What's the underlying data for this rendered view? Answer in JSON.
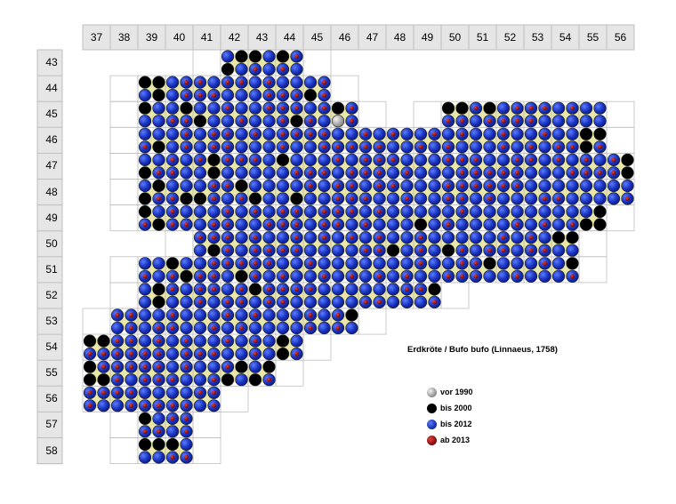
{
  "map": {
    "title": "Erdkröte / Bufo bufo (Linnaeus, 1758)",
    "column_labels": [
      "37",
      "38",
      "39",
      "40",
      "41",
      "42",
      "43",
      "44",
      "45",
      "46",
      "47",
      "48",
      "49",
      "50",
      "51",
      "52",
      "53",
      "54",
      "55",
      "56"
    ],
    "row_labels": [
      "43",
      "44",
      "45",
      "46",
      "47",
      "48",
      "49",
      "50",
      "51",
      "52",
      "53",
      "54",
      "55",
      "56",
      "57",
      "58"
    ],
    "legend": [
      {
        "label": "vor 1990",
        "color": "#9a9a9a"
      },
      {
        "label": "bis 2000",
        "color": "#000000"
      },
      {
        "label": "bis 2012",
        "color": "#1430c8"
      },
      {
        "label": "ab 2013",
        "color": "#a01010"
      }
    ],
    "region_color": "#e9e7a8",
    "grid_line_color": "#bfbfbf",
    "header_fill": "#e6e6e6",
    "row_ranges": [
      [
        42,
        44
      ],
      [
        39,
        45
      ],
      [
        39,
        46,
        50,
        55
      ],
      [
        39,
        55
      ],
      [
        39,
        56
      ],
      [
        39,
        56
      ],
      [
        39,
        55
      ],
      [
        41,
        54
      ],
      [
        39,
        54
      ],
      [
        39,
        49
      ],
      [
        38,
        46
      ],
      [
        37,
        44
      ],
      [
        37,
        43
      ],
      [
        37,
        41
      ],
      [
        39,
        40
      ],
      [
        39,
        40
      ]
    ]
  }
}
